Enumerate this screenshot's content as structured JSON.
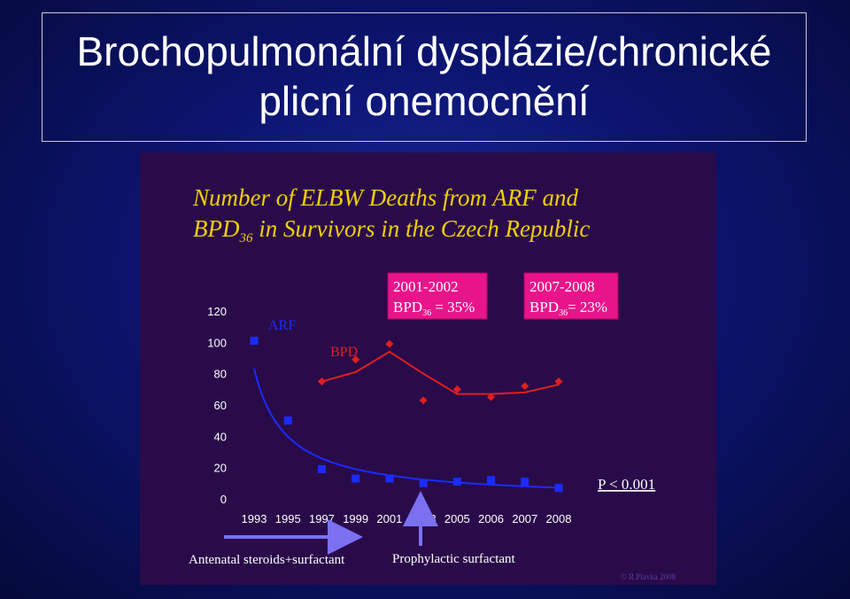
{
  "slide": {
    "title_line1": "Brochopulmonální dysplázie/chronické",
    "title_line2": "plicní onemocnění"
  },
  "colors": {
    "background": "#0c1470",
    "figure_background": "#2a0b4a",
    "chart_title": "#f0d000",
    "arf_series": "#1a2cff",
    "bpd_series": "#e01e1e",
    "callout_fill": "#e8148a",
    "axis_text": "#ffffff",
    "arrow": "#7a70f0"
  },
  "chart_data": {
    "type": "scatter",
    "title_line1": "Number of ELBW Deaths from ARF and",
    "title_line2_prefix": "BPD",
    "title_line2_sub": "36",
    "title_line2_suffix": " in Survivors in the Czech Republic",
    "categories": [
      "1993",
      "1995",
      "1997",
      "1999",
      "2001",
      "2003",
      "2005",
      "2006",
      "2007",
      "2008"
    ],
    "ylim": [
      0,
      120
    ],
    "yticks": [
      "0",
      "20",
      "40",
      "60",
      "80",
      "100",
      "120"
    ],
    "series": [
      {
        "name": "ARF",
        "marker": "square",
        "values": [
          101,
          50,
          19,
          13,
          13,
          10,
          11,
          12,
          11,
          7
        ],
        "trend": "power"
      },
      {
        "name": "BPD",
        "marker": "diamond",
        "values": [
          75,
          89,
          99,
          63,
          70,
          65,
          72,
          75
        ],
        "x_index": [
          2,
          3,
          4,
          5,
          6,
          7,
          8,
          9
        ],
        "trend": [
          75,
          81,
          94,
          80,
          67,
          67,
          68,
          73
        ]
      }
    ],
    "callouts": [
      {
        "period": "2001-2002",
        "bpd_label": "BPD",
        "sub": "36",
        "value_text": " = 35%"
      },
      {
        "period": "2007-2008",
        "bpd_label": "BPD",
        "sub": "36",
        "value_text": "= 23%"
      }
    ],
    "p_value": "P < 0.001",
    "annotation_steroids": "Antenatal steroids+surfactant",
    "annotation_surfactant": "Prophylactic surfactant",
    "copyright": "© R.Plavka 2008"
  }
}
